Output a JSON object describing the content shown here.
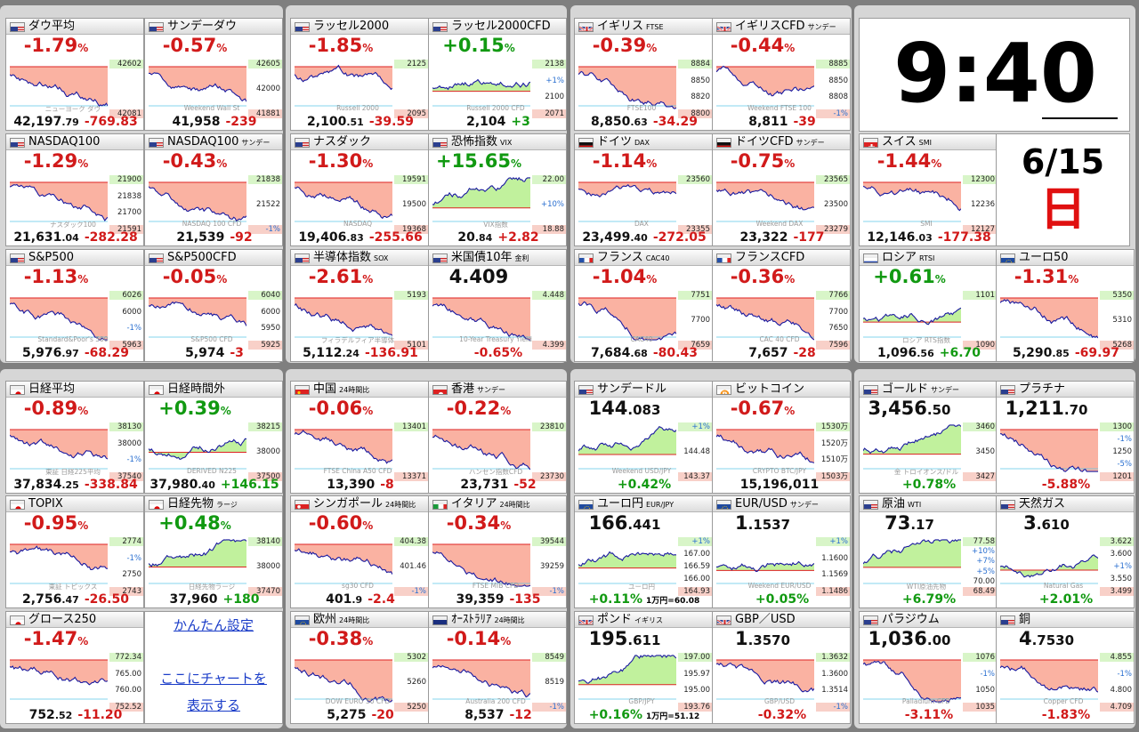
{
  "clock": {
    "time": "9:40",
    "date": "6/15",
    "weekday": "日"
  },
  "links": {
    "setup": "かんたん設定",
    "chart1": "ここにチャートを",
    "chart2": "表示する"
  },
  "tiles": [
    {
      "id": "dow",
      "title": "ダウ平均",
      "sub": "",
      "flag": "us",
      "mode": "pct",
      "head": "-1.79",
      "trend": "dn",
      "axis": [
        "42602",
        "42081"
      ],
      "wm": "ニューヨーク ダウ",
      "fi": "42,197",
      "fd": ".79",
      "fc": "-769.83",
      "fct": "dn"
    },
    {
      "id": "sunday-dow",
      "title": "サンデーダウ",
      "sub": "",
      "flag": "us",
      "mode": "pct",
      "head": "-0.57",
      "trend": "dn",
      "axis": [
        "42605",
        "42000",
        "41881"
      ],
      "wm": "Weekend Wall St",
      "fi": "41,958",
      "fd": "",
      "fc": "-239",
      "fct": "dn"
    },
    {
      "id": "russell",
      "title": "ラッセル2000",
      "sub": "",
      "flag": "us",
      "mode": "pct",
      "head": "-1.85",
      "trend": "dn",
      "axis": [
        "2125",
        "2095"
      ],
      "wm": "Russell 2000",
      "fi": "2,100",
      "fd": ".51",
      "fc": "-39.59",
      "fct": "dn"
    },
    {
      "id": "russell-cfd",
      "title": "ラッセル2000CFD",
      "sub": "",
      "flag": "us",
      "mode": "pct",
      "head": "+0.15",
      "trend": "up",
      "axis": [
        "2138",
        "+1%",
        "2100",
        "2071"
      ],
      "wm": "Russell 2000 CFD",
      "fi": "2,104",
      "fd": "",
      "fc": "+3",
      "fct": "up"
    },
    {
      "id": "ftse",
      "title": "イギリス",
      "sub": "FTSE",
      "flag": "uk",
      "mode": "pct",
      "head": "-0.39",
      "trend": "dn",
      "axis": [
        "8884",
        "8850",
        "8820",
        "8800"
      ],
      "wm": "FTSE100",
      "fi": "8,850",
      "fd": ".63",
      "fc": "-34.29",
      "fct": "dn"
    },
    {
      "id": "ftse-cfd",
      "title": "イギリスCFD",
      "sub": "サンデー",
      "flag": "uk",
      "mode": "pct",
      "head": "-0.44",
      "trend": "dn",
      "axis": [
        "8885",
        "8850",
        "8808",
        "-1%"
      ],
      "wm": "Weekend FTSE 100",
      "fi": "8,811",
      "fd": "",
      "fc": "-39",
      "fct": "dn"
    },
    {
      "id": "nasdaq100",
      "title": "NASDAQ100",
      "sub": "",
      "flag": "us",
      "mode": "pct",
      "head": "-1.29",
      "trend": "dn",
      "axis": [
        "21900",
        "21838",
        "21700",
        "21591"
      ],
      "wm": "ナスダック100",
      "fi": "21,631",
      "fd": ".04",
      "fc": "-282.28",
      "fct": "dn"
    },
    {
      "id": "nasdaq100-sun",
      "title": "NASDAQ100",
      "sub": "サンデー",
      "flag": "us",
      "mode": "pct",
      "head": "-0.43",
      "trend": "dn",
      "axis": [
        "21838",
        "21522",
        "-1%"
      ],
      "wm": "NASDAQ 100 CFD",
      "fi": "21,539",
      "fd": "",
      "fc": "-92",
      "fct": "dn"
    },
    {
      "id": "nasdaq",
      "title": "ナスダック",
      "sub": "",
      "flag": "us",
      "mode": "pct",
      "head": "-1.30",
      "trend": "dn",
      "axis": [
        "19591",
        "19500",
        "19368"
      ],
      "wm": "NASDAQ",
      "fi": "19,406",
      "fd": ".83",
      "fc": "-255.66",
      "fct": "dn"
    },
    {
      "id": "vix",
      "title": "恐怖指数",
      "sub": "VIX",
      "flag": "us",
      "mode": "pct",
      "head": "+15.65",
      "trend": "up",
      "axis": [
        "22.00",
        "+10%",
        "18.88"
      ],
      "wm": "VIX指数",
      "fi": "20",
      "fd": ".84",
      "fc": "+2.82",
      "fct": "dn"
    },
    {
      "id": "dax",
      "title": "ドイツ",
      "sub": "DAX",
      "flag": "de",
      "mode": "pct",
      "head": "-1.14",
      "trend": "dn",
      "axis": [
        "23560",
        "23355"
      ],
      "wm": "DAX",
      "fi": "23,499",
      "fd": ".40",
      "fc": "-272.05",
      "fct": "dn"
    },
    {
      "id": "dax-cfd",
      "title": "ドイツCFD",
      "sub": "サンデー",
      "flag": "de",
      "mode": "pct",
      "head": "-0.75",
      "trend": "dn",
      "axis": [
        "23565",
        "23500",
        "23279"
      ],
      "wm": "Weekend DAX",
      "fi": "23,322",
      "fd": "",
      "fc": "-177",
      "fct": "dn"
    },
    {
      "id": "smi",
      "title": "スイス",
      "sub": "SMI",
      "flag": "ch",
      "mode": "pct",
      "head": "-1.44",
      "trend": "dn",
      "axis": [
        "12300",
        "12236",
        "12127"
      ],
      "wm": "SMI",
      "fi": "12,146",
      "fd": ".03",
      "fc": "-177.38",
      "fct": "dn"
    },
    {
      "id": "sp500",
      "title": "S&P500",
      "sub": "",
      "flag": "us",
      "mode": "pct",
      "head": "-1.13",
      "trend": "dn",
      "axis": [
        "6026",
        "6000",
        "-1%",
        "5963"
      ],
      "wm": "Standard&Poor's 500",
      "fi": "5,976",
      "fd": ".97",
      "fc": "-68.29",
      "fct": "dn"
    },
    {
      "id": "sp500-cfd",
      "title": "S&P500CFD",
      "sub": "",
      "flag": "us",
      "mode": "pct",
      "head": "-0.05",
      "trend": "dn",
      "axis": [
        "6040",
        "6000",
        "5950",
        "5925"
      ],
      "wm": "S&P500 CFD",
      "fi": "5,974",
      "fd": "",
      "fc": "-3",
      "fct": "dn"
    },
    {
      "id": "sox",
      "title": "半導体指数",
      "sub": "SOX",
      "flag": "us",
      "mode": "pct",
      "head": "-2.61",
      "trend": "dn",
      "axis": [
        "5193",
        "5101"
      ],
      "wm": "フィラデルフィア半導体",
      "fi": "5,112",
      "fd": ".24",
      "fc": "-136.91",
      "fct": "dn"
    },
    {
      "id": "us10y",
      "title": "米国債10年",
      "sub": "金利",
      "flag": "us",
      "mode": "val",
      "head": "4.409",
      "hd": "",
      "trend": "dn",
      "axis": [
        "4.448",
        "4.399"
      ],
      "wm": "10-Year Treasury Yield",
      "fi": "",
      "fd": "",
      "fc": "-0.65%",
      "fct": "dn"
    },
    {
      "id": "cac",
      "title": "フランス",
      "sub": "CAC40",
      "flag": "fr",
      "mode": "pct",
      "head": "-1.04",
      "trend": "dn",
      "axis": [
        "7751",
        "7700",
        "7659"
      ],
      "wm": "CAC40",
      "fi": "7,684",
      "fd": ".68",
      "fc": "-80.43",
      "fct": "dn"
    },
    {
      "id": "cac-cfd",
      "title": "フランスCFD",
      "sub": "",
      "flag": "fr",
      "mode": "pct",
      "head": "-0.36",
      "trend": "dn",
      "axis": [
        "7766",
        "7700",
        "7650",
        "7596"
      ],
      "wm": "CAC 40 CFD",
      "fi": "7,657",
      "fd": "",
      "fc": "-28",
      "fct": "dn"
    },
    {
      "id": "rts",
      "title": "ロシア",
      "sub": "RTSI",
      "flag": "ru",
      "mode": "pct",
      "head": "+0.61",
      "trend": "up",
      "axis": [
        "1101",
        "1090"
      ],
      "wm": "ロシア RTS指数",
      "fi": "1,096",
      "fd": ".56",
      "fc": "+6.70",
      "fct": "up"
    },
    {
      "id": "euro50",
      "title": "ユーロ50",
      "sub": "",
      "flag": "eu",
      "mode": "pct",
      "head": "-1.31",
      "trend": "dn",
      "axis": [
        "5350",
        "5310",
        "5268"
      ],
      "wm": "",
      "fi": "5,290",
      "fd": ".85",
      "fc": "-69.97",
      "fct": "dn"
    },
    {
      "id": "nikkei",
      "title": "日経平均",
      "sub": "",
      "flag": "jp",
      "mode": "pct",
      "head": "-0.89",
      "trend": "dn",
      "axis": [
        "38130",
        "38000",
        "-1%",
        "37540"
      ],
      "wm": "東証 日経225平均",
      "fi": "37,834",
      "fd": ".25",
      "fc": "-338.84",
      "fct": "dn"
    },
    {
      "id": "nikkei-ext",
      "title": "日経時間外",
      "sub": "",
      "flag": "jp",
      "mode": "pct",
      "head": "+0.39",
      "trend": "up",
      "axis": [
        "38215",
        "38000",
        "37500"
      ],
      "wm": "DERIVED N225",
      "fi": "37,980",
      "fd": ".40",
      "fc": "+146.15",
      "fct": "up"
    },
    {
      "id": "china",
      "title": "中国",
      "sub": "24時間比",
      "flag": "cn",
      "mode": "pct",
      "head": "-0.06",
      "trend": "dn",
      "axis": [
        "13401",
        "13371"
      ],
      "wm": "FTSE China A50 CFD",
      "fi": "13,390",
      "fd": "",
      "fc": "-8",
      "fct": "dn"
    },
    {
      "id": "hk",
      "title": "香港",
      "sub": "サンデー",
      "flag": "hk",
      "mode": "pct",
      "head": "-0.22",
      "trend": "dn",
      "axis": [
        "23810",
        "23730"
      ],
      "wm": "ハンセン指数CFD",
      "fi": "23,731",
      "fd": "",
      "fc": "-52",
      "fct": "dn"
    },
    {
      "id": "usdjpy-sun",
      "title": "サンデードル",
      "sub": "",
      "flag": "us",
      "mode": "val",
      "head": "144",
      "hd": ".083",
      "trend": "up",
      "axis": [
        "+1%",
        "144.48",
        "143.37"
      ],
      "wm": "Weekend USD/JPY",
      "fi": "",
      "fd": "",
      "fc": "+0.42%",
      "fct": "up"
    },
    {
      "id": "btc",
      "title": "ビットコイン",
      "sub": "",
      "flag": "btc",
      "mode": "pct",
      "head": "-0.67",
      "trend": "dn",
      "axis": [
        "1530万",
        "1520万",
        "1510万",
        "1503万"
      ],
      "wm": "CRYPTO BTC/JPY",
      "fi": "15,196,011",
      "fd": "",
      "fc": "",
      "fct": "dn"
    },
    {
      "id": "gold",
      "title": "ゴールド",
      "sub": "サンデー",
      "flag": "us",
      "mode": "val",
      "head": "3,456",
      "hd": ".50",
      "trend": "up",
      "axis": [
        "3460",
        "3450",
        "3427"
      ],
      "wm": "金 トロイオンス/ドル",
      "fi": "",
      "fd": "",
      "fc": "+0.78%",
      "fct": "up"
    },
    {
      "id": "platinum",
      "title": "プラチナ",
      "sub": "",
      "flag": "us",
      "mode": "val",
      "head": "1,211",
      "hd": ".70",
      "trend": "dn",
      "axis": [
        "1300",
        "-1%",
        "1250",
        "-5%",
        "1201"
      ],
      "wm": "",
      "fi": "",
      "fd": "",
      "fc": "-5.88%",
      "fct": "dn"
    },
    {
      "id": "topix",
      "title": "TOPIX",
      "sub": "",
      "flag": "jp",
      "mode": "pct",
      "head": "-0.95",
      "trend": "dn",
      "axis": [
        "2774",
        "-1%",
        "2750",
        "2743"
      ],
      "wm": "東証 トピックス",
      "fi": "2,756",
      "fd": ".47",
      "fc": "-26.50",
      "fct": "dn"
    },
    {
      "id": "nikkei-fut",
      "title": "日経先物",
      "sub": "ラージ",
      "flag": "jp",
      "mode": "pct",
      "head": "+0.48",
      "trend": "up",
      "axis": [
        "38140",
        "38000",
        "37470"
      ],
      "wm": "日経先物ラージ",
      "fi": "37,960",
      "fd": "",
      "fc": "+180",
      "fct": "up"
    },
    {
      "id": "sg",
      "title": "シンガポール",
      "sub": "24時間比",
      "flag": "sg",
      "mode": "pct",
      "head": "-0.60",
      "trend": "dn",
      "axis": [
        "404.38",
        "401.46",
        "-1%"
      ],
      "wm": "sg30 CFD",
      "fi": "401",
      "fd": ".9",
      "fc": "-2.4",
      "fct": "dn"
    },
    {
      "id": "italy",
      "title": "イタリア",
      "sub": "24時間比",
      "flag": "it",
      "mode": "pct",
      "head": "-0.34",
      "trend": "dn",
      "axis": [
        "39544",
        "39259",
        "-1%"
      ],
      "wm": "FTSE MIB CFD",
      "fi": "39,359",
      "fd": "",
      "fc": "-135",
      "fct": "dn"
    },
    {
      "id": "eurjpy",
      "title": "ユーロ円",
      "sub": "EUR/JPY",
      "flag": "eu",
      "mode": "val",
      "head": "166",
      "hd": ".441",
      "trend": "up",
      "axis": [
        "+1%",
        "167.00",
        "166.59",
        "166.00",
        "164.93"
      ],
      "wm": "ユーロ円",
      "fi": "",
      "fd": "",
      "fc": "+0.11%",
      "fct": "up",
      "jy": "1万円=60.08"
    },
    {
      "id": "eurusd",
      "title": "EUR/USD",
      "sub": "サンデー",
      "flag": "eu",
      "mode": "val",
      "head": "1",
      "hd": ".1537",
      "trend": "up",
      "axis": [
        "+1%",
        "1.1600",
        "1.1569",
        "1.1486"
      ],
      "wm": "Weekend EUR/USD",
      "fi": "",
      "fd": "",
      "fc": "+0.05%",
      "fct": "up"
    },
    {
      "id": "crude",
      "title": "原油",
      "sub": "WTI",
      "flag": "us",
      "mode": "val",
      "head": "73",
      "hd": ".17",
      "trend": "up",
      "axis": [
        "77.58",
        "+10%",
        "+7%",
        "+5%",
        "70.00",
        "68.49"
      ],
      "wm": "WTI原油先物",
      "fi": "",
      "fd": "",
      "fc": "+6.79%",
      "fct": "up"
    },
    {
      "id": "natgas",
      "title": "天然ガス",
      "sub": "",
      "flag": "us",
      "mode": "val",
      "head": "3",
      "hd": ".610",
      "trend": "up",
      "axis": [
        "3.622",
        "3.600",
        "+1%",
        "3.550",
        "3.499"
      ],
      "wm": "Natural Gas",
      "fi": "",
      "fd": "",
      "fc": "+2.01%",
      "fct": "up"
    },
    {
      "id": "growth",
      "title": "グロース250",
      "sub": "",
      "flag": "jp",
      "mode": "pct",
      "head": "-1.47",
      "trend": "dn",
      "axis": [
        "772.34",
        "765.00",
        "760.00",
        "752.52"
      ],
      "wm": "",
      "fi": "752",
      "fd": ".52",
      "fc": "-11.20",
      "fct": "dn"
    },
    {
      "id": "europe",
      "title": "欧州",
      "sub": "24時間比",
      "flag": "eu",
      "mode": "pct",
      "head": "-0.38",
      "trend": "dn",
      "axis": [
        "5302",
        "5260",
        "5250"
      ],
      "wm": "DOW EURO 50 CFD",
      "fi": "5,275",
      "fd": "",
      "fc": "-20",
      "fct": "dn"
    },
    {
      "id": "aus",
      "title": "ｵｰｽﾄﾗﾘｱ",
      "sub": "24時間比",
      "flag": "au",
      "mode": "pct",
      "head": "-0.14",
      "trend": "dn",
      "axis": [
        "8549",
        "8519",
        "-1%"
      ],
      "wm": "Australia 200 CFD",
      "fi": "8,537",
      "fd": "",
      "fc": "-12",
      "fct": "dn"
    },
    {
      "id": "gbpjpy",
      "title": "ポンド",
      "sub": "イギリス",
      "flag": "uk",
      "mode": "val",
      "head": "195",
      "hd": ".611",
      "trend": "up",
      "axis": [
        "197.00",
        "195.97",
        "195.00",
        "193.76"
      ],
      "wm": "GBP/JPY",
      "fi": "",
      "fd": "",
      "fc": "+0.16%",
      "fct": "up",
      "jy": "1万円=51.12"
    },
    {
      "id": "gbpusd",
      "title": "GBP／USD",
      "sub": "",
      "flag": "uk",
      "mode": "val",
      "head": "1",
      "hd": ".3570",
      "trend": "dn",
      "axis": [
        "1.3632",
        "1.3600",
        "1.3514",
        "-1%"
      ],
      "wm": "GBP/USD",
      "fi": "",
      "fd": "",
      "fc": "-0.32%",
      "fct": "dn"
    },
    {
      "id": "palladium",
      "title": "パラジウム",
      "sub": "",
      "flag": "us",
      "mode": "val",
      "head": "1,036",
      "hd": ".00",
      "trend": "dn",
      "axis": [
        "1076",
        "-1%",
        "1050",
        "1035"
      ],
      "wm": "Palladium CFD",
      "fi": "",
      "fd": "",
      "fc": "-3.11%",
      "fct": "dn"
    },
    {
      "id": "copper",
      "title": "銅",
      "sub": "",
      "flag": "us",
      "mode": "val",
      "head": "4",
      "hd": ".7530",
      "trend": "dn",
      "axis": [
        "4.855",
        "-1%",
        "4.800",
        "4.709"
      ],
      "wm": "Copper CFD",
      "fi": "",
      "fd": "",
      "fc": "-1.83%",
      "fct": "dn"
    }
  ],
  "colors": {
    "up": "#119911",
    "down": "#d11a1a",
    "fill_down": "#f9a592",
    "fill_up": "#b6ef8c",
    "line": "#1a1aa0"
  }
}
